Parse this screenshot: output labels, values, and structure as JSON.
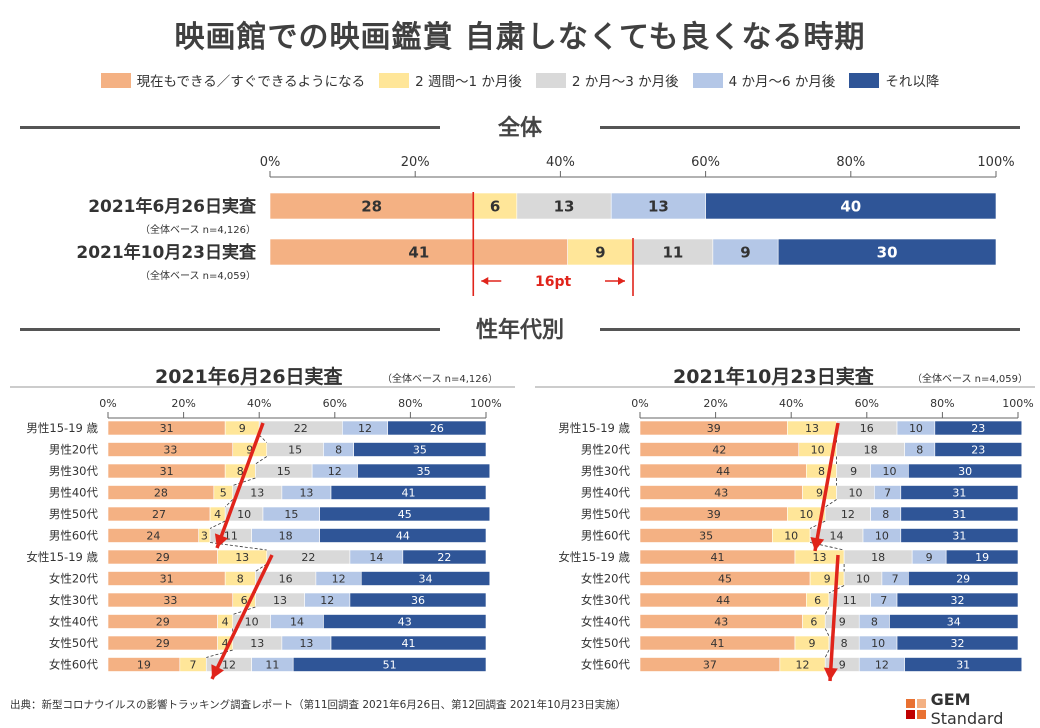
{
  "title": "映画館での映画鑑賞 自粛しなくても良くなる時期",
  "legend": [
    {
      "label": "現在もできる／すぐできるようになる",
      "color": "#f4b183"
    },
    {
      "label": "2 週間～1 か月後",
      "color": "#ffe699"
    },
    {
      "label": "2 か月～3 か月後",
      "color": "#d9d9d9"
    },
    {
      "label": "4 か月～6 か月後",
      "color": "#b4c7e7"
    },
    {
      "label": "それ以降",
      "color": "#2f5597"
    }
  ],
  "colors": [
    "#f4b183",
    "#ffe699",
    "#d9d9d9",
    "#b4c7e7",
    "#2f5597"
  ],
  "sections": {
    "overall": "全体",
    "demographic": "性年代別"
  },
  "chart_data": [
    {
      "type": "bar",
      "orientation": "horizontal-stacked-100",
      "title": "全体",
      "ticks": [
        "0%",
        "20%",
        "40%",
        "60%",
        "80%",
        "100%"
      ],
      "xlim": [
        0,
        100
      ],
      "categories": [
        "2021年6月26日実査",
        "2021年10月23日実査"
      ],
      "category_notes": [
        "（全体ベース n=4,126）",
        "（全体ベース n=4,059）"
      ],
      "values": [
        [
          28,
          6,
          13,
          13,
          40
        ],
        [
          41,
          9,
          11,
          9,
          30
        ]
      ],
      "annotation": "16pt"
    },
    {
      "type": "bar",
      "orientation": "horizontal-stacked-100",
      "title": "2021年6月26日実査",
      "note": "（全体ベース n=4,126）",
      "ticks": [
        "0%",
        "20%",
        "40%",
        "60%",
        "80%",
        "100%"
      ],
      "xlim": [
        0,
        100
      ],
      "categories": [
        "男性15-19 歳",
        "男性20代",
        "男性30代",
        "男性40代",
        "男性50代",
        "男性60代",
        "女性15-19 歳",
        "女性20代",
        "女性30代",
        "女性40代",
        "女性50代",
        "女性60代"
      ],
      "values": [
        [
          31,
          9,
          22,
          12,
          26
        ],
        [
          33,
          9,
          15,
          8,
          35
        ],
        [
          31,
          8,
          15,
          12,
          35
        ],
        [
          28,
          5,
          13,
          13,
          41
        ],
        [
          27,
          4,
          10,
          15,
          45
        ],
        [
          24,
          3,
          11,
          18,
          44
        ],
        [
          29,
          13,
          22,
          14,
          22
        ],
        [
          31,
          8,
          16,
          12,
          34
        ],
        [
          33,
          6,
          13,
          12,
          36
        ],
        [
          29,
          4,
          10,
          14,
          43
        ],
        [
          29,
          4,
          13,
          13,
          41
        ],
        [
          19,
          7,
          12,
          11,
          51
        ]
      ]
    },
    {
      "type": "bar",
      "orientation": "horizontal-stacked-100",
      "title": "2021年10月23日実査",
      "note": "（全体ベース n=4,059）",
      "ticks": [
        "0%",
        "20%",
        "40%",
        "60%",
        "80%",
        "100%"
      ],
      "xlim": [
        0,
        100
      ],
      "categories": [
        "男性15-19 歳",
        "男性20代",
        "男性30代",
        "男性40代",
        "男性50代",
        "男性60代",
        "女性15-19 歳",
        "女性20代",
        "女性30代",
        "女性40代",
        "女性50代",
        "女性60代"
      ],
      "values": [
        [
          39,
          13,
          16,
          10,
          23
        ],
        [
          42,
          10,
          18,
          8,
          23
        ],
        [
          44,
          8,
          9,
          10,
          30
        ],
        [
          43,
          9,
          10,
          7,
          31
        ],
        [
          39,
          10,
          12,
          8,
          31
        ],
        [
          35,
          10,
          14,
          10,
          31
        ],
        [
          41,
          13,
          18,
          9,
          19
        ],
        [
          45,
          9,
          10,
          7,
          29
        ],
        [
          44,
          6,
          11,
          7,
          32
        ],
        [
          43,
          6,
          9,
          8,
          34
        ],
        [
          41,
          9,
          8,
          10,
          32
        ],
        [
          37,
          12,
          9,
          12,
          31
        ]
      ]
    }
  ],
  "footnote": "出典：新型コロナウイルスの影響トラッキング調査レポート（第11回調査 2021年6月26日、第12回調査 2021年10月23日実施）",
  "brand": {
    "name_bold": "GEM",
    "name_light": " Standard",
    "logo_colors": [
      "#e97132",
      "#f4b183",
      "#c00000",
      "#e97132"
    ]
  }
}
